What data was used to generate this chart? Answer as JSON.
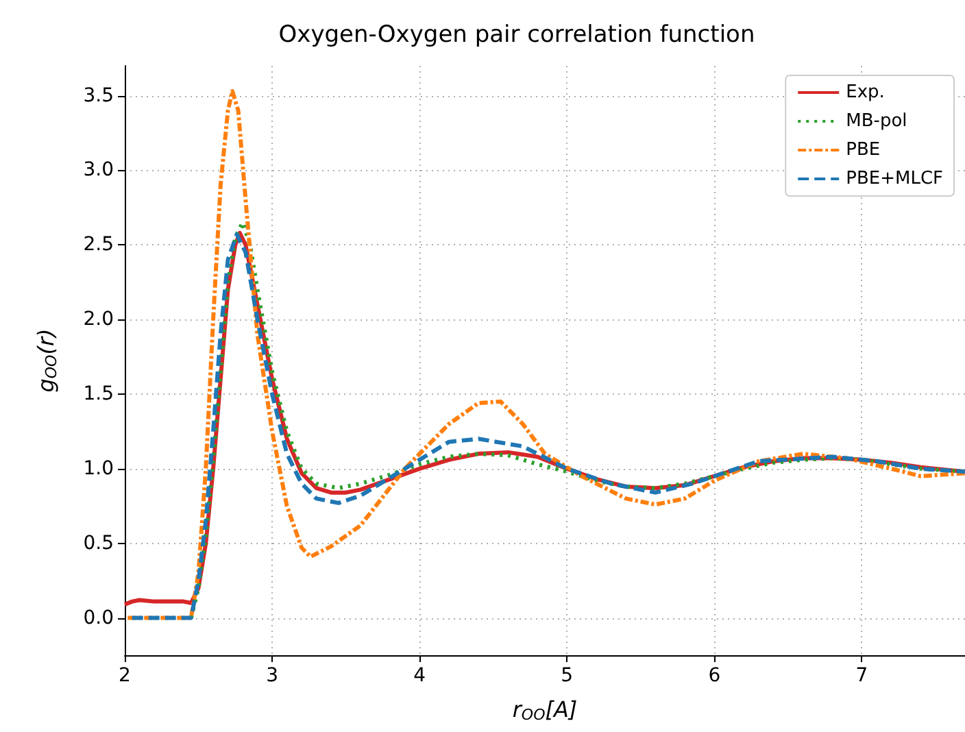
{
  "chart_data": {
    "type": "line",
    "title": "Oxygen-Oxygen pair correlation function",
    "xlabel": "r$_{OO}$[A]",
    "ylabel": "g$_{OO}$(r)",
    "xlim": [
      2,
      7.7
    ],
    "xticks": [
      2,
      3,
      4,
      5,
      6,
      7
    ],
    "ylim": [
      -0.25,
      3.7
    ],
    "yticks": [
      {
        "value": 0,
        "label": "0.0"
      },
      0.5,
      {
        "value": 1,
        "label": "1.0"
      },
      1.5,
      {
        "value": 2,
        "label": "2.0"
      },
      2.5,
      {
        "value": 3,
        "label": "3.0"
      },
      3.5
    ],
    "grid": true,
    "legend": "top right",
    "marker": "none",
    "series": [
      {
        "name": "Exp.",
        "color": "#d62728",
        "line_style": "solid",
        "x": [
          2.0,
          2.05,
          2.1,
          2.2,
          2.3,
          2.4,
          2.45,
          2.5,
          2.55,
          2.6,
          2.65,
          2.7,
          2.75,
          2.78,
          2.82,
          2.9,
          3.0,
          3.1,
          3.2,
          3.3,
          3.4,
          3.5,
          3.6,
          3.8,
          4.0,
          4.2,
          4.4,
          4.6,
          4.8,
          5.0,
          5.2,
          5.4,
          5.6,
          5.8,
          6.0,
          6.2,
          6.4,
          6.6,
          6.8,
          7.0,
          7.2,
          7.4,
          7.7
        ],
        "values": [
          0.09,
          0.11,
          0.12,
          0.11,
          0.11,
          0.11,
          0.1,
          0.2,
          0.5,
          1.0,
          1.6,
          2.2,
          2.5,
          2.58,
          2.5,
          2.1,
          1.6,
          1.2,
          0.97,
          0.87,
          0.84,
          0.84,
          0.86,
          0.93,
          1.0,
          1.06,
          1.1,
          1.11,
          1.08,
          1.0,
          0.93,
          0.88,
          0.87,
          0.89,
          0.95,
          1.01,
          1.05,
          1.07,
          1.07,
          1.06,
          1.04,
          1.01,
          0.98
        ]
      },
      {
        "name": "MB-pol",
        "color": "#2ca02c",
        "line_style": "dotted",
        "x": [
          2.45,
          2.5,
          2.55,
          2.6,
          2.65,
          2.7,
          2.75,
          2.8,
          2.85,
          2.9,
          3.0,
          3.1,
          3.2,
          3.3,
          3.45,
          3.6,
          3.8,
          4.0,
          4.2,
          4.4,
          4.6,
          4.8,
          5.0,
          5.2,
          5.4,
          5.6,
          5.8,
          6.0,
          6.2,
          6.4,
          6.6,
          6.8,
          7.0,
          7.2,
          7.4,
          7.7
        ],
        "values": [
          0.0,
          0.2,
          0.55,
          1.05,
          1.65,
          2.25,
          2.55,
          2.65,
          2.5,
          2.2,
          1.65,
          1.25,
          1.0,
          0.9,
          0.87,
          0.9,
          0.96,
          1.03,
          1.08,
          1.1,
          1.09,
          1.03,
          0.98,
          0.92,
          0.88,
          0.87,
          0.9,
          0.95,
          1.0,
          1.04,
          1.06,
          1.07,
          1.06,
          1.03,
          1.0,
          0.98
        ]
      },
      {
        "name": "PBE",
        "color": "#ff7f0e",
        "line_style": "dashdot",
        "x": [
          2.02,
          2.45,
          2.5,
          2.55,
          2.6,
          2.65,
          2.7,
          2.73,
          2.77,
          2.82,
          2.9,
          3.0,
          3.1,
          3.2,
          3.26,
          3.4,
          3.6,
          3.9,
          4.2,
          4.4,
          4.55,
          4.7,
          4.85,
          5.1,
          5.4,
          5.6,
          5.8,
          6.0,
          6.3,
          6.6,
          6.9,
          7.2,
          7.4,
          7.7
        ],
        "values": [
          0.0,
          0.0,
          0.3,
          1.0,
          2.0,
          2.9,
          3.4,
          3.53,
          3.4,
          2.8,
          1.9,
          1.25,
          0.75,
          0.47,
          0.41,
          0.48,
          0.62,
          1.0,
          1.3,
          1.44,
          1.45,
          1.3,
          1.1,
          0.95,
          0.8,
          0.76,
          0.8,
          0.92,
          1.05,
          1.1,
          1.07,
          1.0,
          0.95,
          0.97
        ]
      },
      {
        "name": "PBE+MLCF",
        "color": "#1f77b4",
        "line_style": "dashed",
        "x": [
          2.05,
          2.45,
          2.5,
          2.55,
          2.6,
          2.65,
          2.7,
          2.76,
          2.82,
          2.9,
          3.0,
          3.1,
          3.2,
          3.3,
          3.45,
          3.6,
          3.9,
          4.2,
          4.4,
          4.7,
          5.0,
          5.3,
          5.6,
          5.85,
          6.3,
          6.8,
          7.1,
          7.4,
          7.7
        ],
        "values": [
          0.0,
          0.0,
          0.25,
          0.65,
          1.25,
          1.9,
          2.4,
          2.57,
          2.45,
          2.0,
          1.5,
          1.1,
          0.9,
          0.8,
          0.77,
          0.82,
          1.0,
          1.18,
          1.2,
          1.15,
          1.0,
          0.9,
          0.84,
          0.9,
          1.05,
          1.08,
          1.05,
          1.0,
          0.98
        ]
      }
    ]
  }
}
